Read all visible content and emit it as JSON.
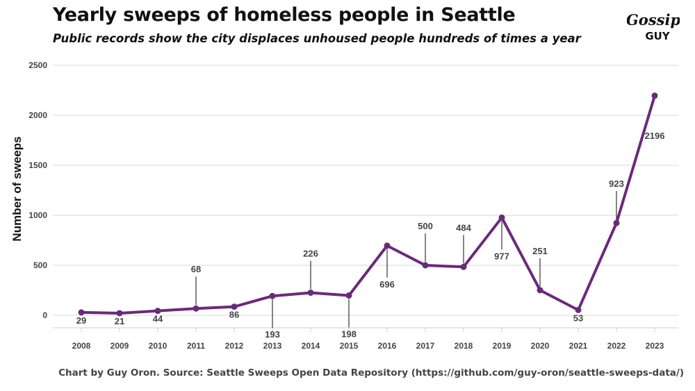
{
  "header": {
    "title": "Yearly sweeps of homeless people in Seattle",
    "subtitle": "Public records show the city displaces unhoused people hundreds of times a year",
    "logo_text_line1": "Gossip",
    "logo_text_line2": "GUY"
  },
  "caption": "Chart by Guy Oron. Source: Seattle Sweeps Open Data Repository (https://github.com/guy-oron/seattle-sweeps-data/)",
  "colors": {
    "line": "#6a2a7a",
    "grid": "#d9d9d9",
    "label": "#444444",
    "leader": "#333333"
  },
  "chart_data": {
    "type": "line",
    "title": "Yearly sweeps of homeless people in Seattle",
    "subtitle": "Public records show the city displaces unhoused people hundreds of times a year",
    "xlabel": "",
    "ylabel": "Number of sweeps",
    "ylim": [
      0,
      2500
    ],
    "yticks": [
      0,
      500,
      1000,
      1500,
      2000,
      2500
    ],
    "grid": true,
    "legend": "none",
    "categories": [
      "2008",
      "2009",
      "2010",
      "2011",
      "2012",
      "2013",
      "2014",
      "2015",
      "2016",
      "2017",
      "2018",
      "2019",
      "2020",
      "2021",
      "2022",
      "2023"
    ],
    "values": [
      29,
      21,
      44,
      68,
      86,
      193,
      226,
      198,
      696,
      500,
      484,
      977,
      251,
      53,
      923,
      2196
    ],
    "label_placement": [
      "below",
      "below",
      "below",
      "above",
      "below",
      "below",
      "above",
      "below",
      "below",
      "above",
      "above",
      "below",
      "above",
      "below",
      "above",
      "below"
    ],
    "label_leaders": [
      false,
      false,
      false,
      true,
      false,
      true,
      true,
      true,
      true,
      true,
      true,
      true,
      true,
      false,
      true,
      false
    ]
  }
}
